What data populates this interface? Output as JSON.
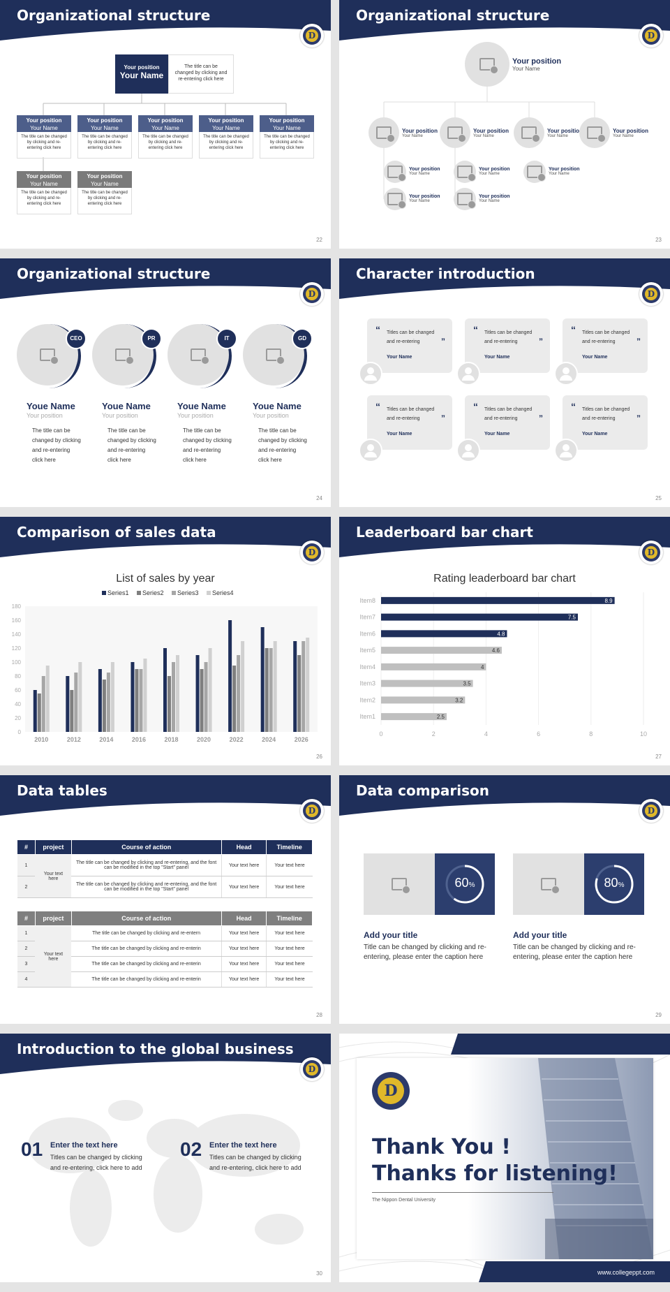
{
  "s22": {
    "title": "Organizational structure",
    "page": "22",
    "top_pos": "Your position",
    "top_name": "Your Name",
    "top_desc": "The title can be changed by clicking and re-entering click here",
    "pos": "Your position",
    "name": "Your Name",
    "desc": "The title can be changed by clicking and re-entering click here"
  },
  "s23": {
    "title": "Organizational structure",
    "page": "23",
    "pos": "Your position",
    "name": "Your Name"
  },
  "s24": {
    "title": "Organizational structure",
    "page": "24",
    "cards": [
      {
        "badge": "CEO",
        "name": "Youe Name",
        "pos": "Your position",
        "desc": "The title can be changed by clicking and re-entering click here"
      },
      {
        "badge": "PR",
        "name": "Youe Name",
        "pos": "Your position",
        "desc": "The title can be changed by clicking and re-entering click here"
      },
      {
        "badge": "IT",
        "name": "Youe Name",
        "pos": "Your position",
        "desc": "The title can be changed by clicking and re-entering click here"
      },
      {
        "badge": "GD",
        "name": "Youe Name",
        "pos": "Your position",
        "desc": "The title can be changed by clicking and re-entering click here"
      }
    ]
  },
  "s25": {
    "title": "Character introduction",
    "page": "25",
    "quote": "Titles can be changed and re-entering",
    "name": "Your Name"
  },
  "s26": {
    "title": "Comparison of sales data",
    "page": "26"
  },
  "s27": {
    "title": "Leaderboard bar chart",
    "page": "27"
  },
  "chart_data": [
    {
      "type": "bar",
      "title": "List of sales by year",
      "categories": [
        "2010",
        "2012",
        "2014",
        "2016",
        "2018",
        "2020",
        "2022",
        "2024",
        "2026"
      ],
      "series": [
        {
          "name": "Series1",
          "color": "#1f2f5a",
          "values": [
            60,
            80,
            90,
            100,
            120,
            110,
            160,
            150,
            130
          ]
        },
        {
          "name": "Series2",
          "color": "#7f7f7f",
          "values": [
            55,
            60,
            75,
            90,
            80,
            90,
            95,
            120,
            110
          ]
        },
        {
          "name": "Series3",
          "color": "#a6a6a6",
          "values": [
            80,
            85,
            85,
            90,
            100,
            100,
            110,
            120,
            130
          ]
        },
        {
          "name": "Series4",
          "color": "#d0d0d0",
          "values": [
            95,
            100,
            100,
            105,
            110,
            120,
            130,
            130,
            135
          ]
        }
      ],
      "ylim": [
        0,
        180
      ],
      "yticks": [
        "0",
        "20",
        "40",
        "60",
        "80",
        "100",
        "120",
        "140",
        "160",
        "180"
      ],
      "legend": "top",
      "grid": false
    },
    {
      "type": "bar",
      "orientation": "horizontal",
      "title": "Rating leaderboard bar chart",
      "categories": [
        "Item8",
        "Item7",
        "Item6",
        "Item5",
        "Item4",
        "Item3",
        "Item2",
        "Item1"
      ],
      "values": [
        8.9,
        7.5,
        4.8,
        4.6,
        4,
        3.5,
        3.2,
        2.5
      ],
      "labels": [
        "8.9",
        "7.5",
        "4.8",
        "4.6",
        "4",
        "3.5",
        "3.2",
        "2.5"
      ],
      "xlim": [
        0,
        10
      ],
      "xticks": [
        "0",
        "2",
        "4",
        "6",
        "8",
        "10"
      ],
      "highlight_color": "#1f2f5a",
      "base_color": "#bfbfbf",
      "grid": true
    }
  ],
  "s28": {
    "title": "Data tables",
    "page": "28",
    "headers": [
      "#",
      "project",
      "Course of action",
      "Head",
      "Timeline"
    ],
    "t1": {
      "project": "Your text here",
      "rows": [
        {
          "n": "1",
          "action": "The title can be changed by clicking and re-entering, and the font can be modified in the top \"Start\" panel",
          "head": "Your text here",
          "time": "Your text here"
        },
        {
          "n": "2",
          "action": "The title can be changed by clicking and re-entering, and the font can be modified in the top \"Start\" panel",
          "head": "Your text here",
          "time": "Your text here"
        }
      ]
    },
    "t2": {
      "project": "Your text here",
      "rows": [
        {
          "n": "1",
          "action": "The title can be changed by clicking and re-entern",
          "head": "Your text here",
          "time": "Your text here"
        },
        {
          "n": "2",
          "action": "The title can be changed by clicking and re-enterin",
          "head": "Your text here",
          "time": "Your text here"
        },
        {
          "n": "3",
          "action": "The title can be changed by clicking and re-enterin",
          "head": "Your text here",
          "time": "Your text here"
        },
        {
          "n": "4",
          "action": "The title can be changed by clicking and re-enterin",
          "head": "Your text here",
          "time": "Your text here"
        }
      ]
    }
  },
  "s29": {
    "title": "Data comparison",
    "page": "29",
    "items": [
      {
        "percent": 60,
        "label": "60",
        "unit": "%",
        "heading": "Add your title",
        "text": "Title can be changed by clicking and re-entering, please enter the caption here"
      },
      {
        "percent": 80,
        "label": "80",
        "unit": "%",
        "heading": "Add your title",
        "text": "Title can be changed by clicking and re-entering, please enter the caption here"
      }
    ]
  },
  "s30": {
    "title": "Introduction to the global business",
    "page": "30",
    "items": [
      {
        "num": "01",
        "heading": "Enter the text here",
        "text": "Titles can be changed by clicking and re-entering, click here to add"
      },
      {
        "num": "02",
        "heading": "Enter the text here",
        "text": "Titles can be changed by clicking and re-entering, click here to add"
      }
    ]
  },
  "s31": {
    "line1": "Thank You !",
    "line2": "Thanks for listening!",
    "university": "The Nippon Dental University",
    "url": "www.collegeppt.com"
  },
  "colors": {
    "navy": "#1f2f5a",
    "gray": "#7f7f7f",
    "light": "#e1e1e1"
  }
}
